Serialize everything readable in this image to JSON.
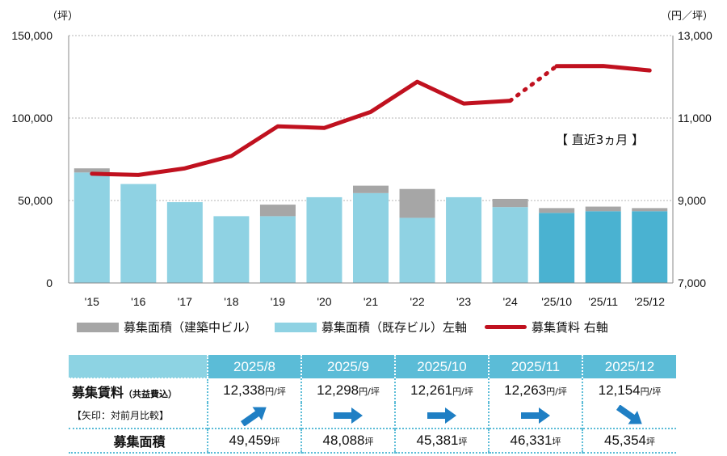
{
  "chart_data": {
    "type": "bar",
    "categories": [
      "'15",
      "'16",
      "'17",
      "'18",
      "'19",
      "'20",
      "'21",
      "'22",
      "'23",
      "'24",
      "'25/10",
      "'25/11",
      "'25/12"
    ],
    "series": [
      {
        "name": "募集面積（既存ビル）左軸",
        "axis": "left",
        "kind": "bar",
        "color": "#8fd2e3",
        "values": [
          67000,
          60000,
          49000,
          40500,
          40500,
          52000,
          54500,
          39500,
          52000,
          46000,
          42500,
          43500,
          43500
        ]
      },
      {
        "name": "募集面積（建築中ビル）",
        "axis": "left",
        "kind": "bar",
        "stacked_on": "既存",
        "color": "#a6a6a6",
        "values": [
          2500,
          0,
          0,
          0,
          7000,
          0,
          4500,
          17500,
          0,
          5000,
          2900,
          2800,
          1900
        ]
      },
      {
        "name": "募集賃料 右軸",
        "axis": "right",
        "kind": "line",
        "color": "#c0111f",
        "values": [
          9650,
          9620,
          9780,
          10080,
          10800,
          10760,
          11150,
          11880,
          11350,
          11420,
          12261,
          12263,
          12154
        ]
      }
    ],
    "recent_highlight_color": "#4ab2d1",
    "left_axis": {
      "unit": "（坪）",
      "ylim": [
        0,
        150000
      ],
      "ticks": [
        "0",
        "50,000",
        "100,000",
        "150,000"
      ]
    },
    "right_axis": {
      "unit": "（円／坪）",
      "ylim": [
        7000,
        13000
      ],
      "ticks": [
        "7,000",
        "9,000",
        "11,000",
        "13,000"
      ]
    },
    "annotation": "【 直近3ヵ月 】",
    "grid": true,
    "legend_position": "bottom"
  },
  "legend": [
    {
      "label": "募集面積（建築中ビル）",
      "color": "#a6a6a6",
      "shape": "bar"
    },
    {
      "label": "募集面積（既存ビル）左軸",
      "color": "#8fd2e3",
      "shape": "bar"
    },
    {
      "label": "募集賃料 右軸",
      "color": "#c0111f",
      "shape": "line"
    }
  ],
  "table": {
    "months": [
      "2025/8",
      "2025/9",
      "2025/10",
      "2025/11",
      "2025/12"
    ],
    "rent_label": "募集賃料",
    "rent_sublabel": "（共益費込）",
    "arrow_label": "【矢印：対前月比較】",
    "rent_values": [
      "12,338",
      "12,298",
      "12,261",
      "12,263",
      "12,154"
    ],
    "rent_unit": "円/坪",
    "arrows": [
      "up-right",
      "right",
      "right",
      "right",
      "down-right"
    ],
    "arrow_color": "#1f7fc4",
    "area_label": "募集面積",
    "area_values": [
      "49,459",
      "48,088",
      "45,381",
      "46,331",
      "45,354"
    ],
    "area_unit": "坪"
  }
}
